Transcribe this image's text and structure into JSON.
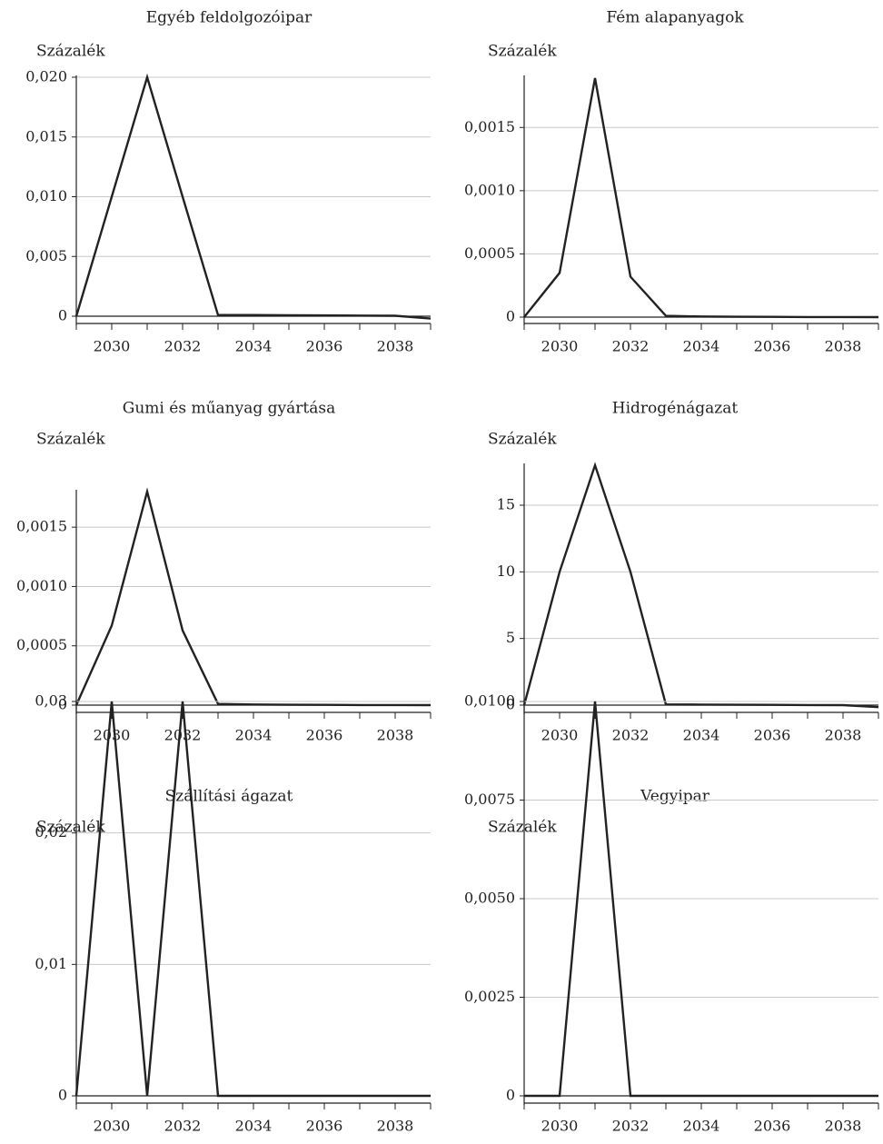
{
  "chart_data": [
    {
      "type": "line",
      "title": "Egyéb feldolgozóipar",
      "ylabel": "Százalék",
      "x": [
        2029,
        2030,
        2031,
        2032,
        2033,
        2034,
        2035,
        2036,
        2037,
        2038,
        2039
      ],
      "values": [
        0,
        0.01,
        0.02,
        0.01,
        0.0001,
        0.0001,
        8e-05,
        7e-05,
        5e-05,
        4e-05,
        -0.0002
      ],
      "xlim": [
        2029,
        2039
      ],
      "ylim": [
        0,
        0.02
      ],
      "xticks": [
        2030,
        2032,
        2034,
        2036,
        2038
      ],
      "yticks": [
        0,
        0.005,
        0.01,
        0.015,
        0.02
      ],
      "ytick_labels": [
        "0",
        "0,005",
        "0,010",
        "0,015",
        "0,020"
      ],
      "grid": true
    },
    {
      "type": "line",
      "title": "Fém alapanyagok",
      "ylabel": "Százalék",
      "x": [
        2029,
        2030,
        2031,
        2032,
        2033,
        2034,
        2035,
        2036,
        2037,
        2038,
        2039
      ],
      "values": [
        0,
        0.00035,
        0.00189,
        0.00032,
        1e-05,
        5e-06,
        3e-06,
        2e-06,
        1e-06,
        1e-06,
        0
      ],
      "xlim": [
        2029,
        2039
      ],
      "ylim": [
        0,
        0.0019
      ],
      "xticks": [
        2030,
        2032,
        2034,
        2036,
        2038
      ],
      "yticks": [
        0,
        0.0005,
        0.001,
        0.0015
      ],
      "ytick_labels": [
        "0",
        "0,0005",
        "0,0010",
        "0,0015"
      ],
      "grid": true
    },
    {
      "type": "line",
      "title": "Gumi és műanyag gyártása",
      "ylabel": "Százalék",
      "x": [
        2029,
        2030,
        2031,
        2032,
        2033,
        2034,
        2035,
        2036,
        2037,
        2038,
        2039
      ],
      "values": [
        0,
        0.00067,
        0.0018,
        0.00063,
        1e-05,
        5e-06,
        3e-06,
        2e-06,
        1e-06,
        1e-06,
        0
      ],
      "xlim": [
        2029,
        2039
      ],
      "ylim": [
        0,
        0.0019
      ],
      "xticks": [
        2030,
        2032,
        2034,
        2036,
        2038
      ],
      "yticks": [
        0,
        0.0005,
        0.001,
        0.0015
      ],
      "ytick_labels": [
        "0",
        "0,0005",
        "0,0010",
        "0,0015"
      ],
      "grid": true
    },
    {
      "type": "line",
      "title": "Hidrogénágazat",
      "ylabel": "Százalék",
      "x": [
        2029,
        2030,
        2031,
        2032,
        2033,
        2034,
        2035,
        2036,
        2037,
        2038,
        2039
      ],
      "values": [
        0,
        10,
        18,
        10,
        0.05,
        0.04,
        0.03,
        0.02,
        0.01,
        0,
        -0.15
      ],
      "xlim": [
        2029,
        2039
      ],
      "ylim": [
        0,
        18.5
      ],
      "xticks": [
        2030,
        2032,
        2034,
        2036,
        2038
      ],
      "yticks": [
        0,
        5,
        10,
        15
      ],
      "ytick_labels": [
        "0",
        "5",
        "10",
        "15"
      ],
      "grid": true
    },
    {
      "type": "line",
      "title": "Szállítási ágazat",
      "ylabel": "Százalék",
      "x": [
        2029,
        2030,
        2031,
        2032,
        2033,
        2034,
        2035,
        2036,
        2037,
        2038,
        2039
      ],
      "values": [
        0,
        0.03,
        0,
        0.03,
        0,
        0,
        0,
        0,
        0,
        0,
        0
      ],
      "xlim": [
        2029,
        2039
      ],
      "ylim": [
        0,
        0.031
      ],
      "xticks": [
        2030,
        2032,
        2034,
        2036,
        2038
      ],
      "yticks": [
        0,
        0.01,
        0.02,
        0.03
      ],
      "ytick_labels": [
        "0",
        "0,01",
        "0,02",
        "0,03"
      ],
      "grid": true
    },
    {
      "type": "line",
      "title": "Vegyipar",
      "ylabel": "Százalék",
      "x": [
        2029,
        2030,
        2031,
        2032,
        2033,
        2034,
        2035,
        2036,
        2037,
        2038,
        2039
      ],
      "values": [
        0,
        0,
        0.01,
        0,
        0,
        0,
        0,
        0,
        0,
        0,
        0
      ],
      "xlim": [
        2029,
        2039
      ],
      "ylim": [
        0,
        0.0103
      ],
      "xticks": [
        2030,
        2032,
        2034,
        2036,
        2038
      ],
      "yticks": [
        0,
        0.0025,
        0.005,
        0.0075,
        0.01
      ],
      "ytick_labels": [
        "0",
        "0,0025",
        "0,0050",
        "0,0075",
        "0,0100"
      ],
      "grid": true
    }
  ]
}
